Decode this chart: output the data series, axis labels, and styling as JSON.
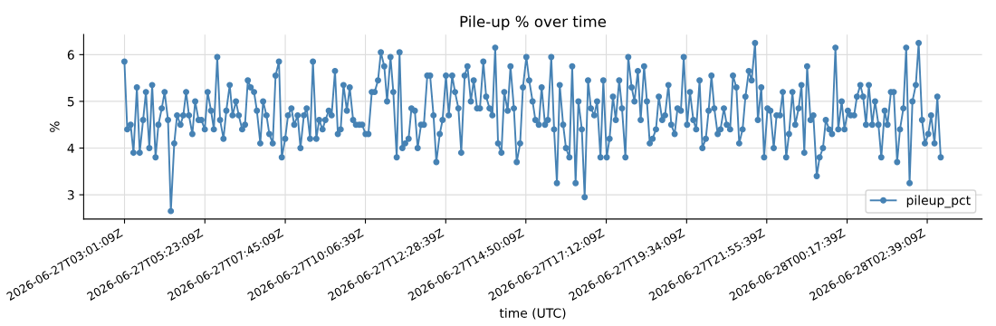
{
  "chart_data": {
    "type": "line",
    "title": "Pile-up % over time",
    "xlabel": "time (UTC)",
    "ylabel": "%",
    "x": [
      "2026-06-27T03:01",
      "2026-06-27T03:06",
      "2026-06-27T03:12",
      "2026-06-27T03:17",
      "2026-06-27T03:23",
      "2026-06-27T03:28",
      "2026-06-27T03:34",
      "2026-06-27T03:39",
      "2026-06-27T03:45",
      "2026-06-27T03:50",
      "2026-06-27T03:56",
      "2026-06-27T04:01",
      "2026-06-27T04:07",
      "2026-06-27T04:12",
      "2026-06-27T04:18",
      "2026-06-27T04:23",
      "2026-06-27T04:29",
      "2026-06-27T04:34",
      "2026-06-27T04:40",
      "2026-06-27T04:45",
      "2026-06-27T04:50",
      "2026-06-27T04:55",
      "2026-06-27T05:01",
      "2026-06-27T05:06",
      "2026-06-27T05:12",
      "2026-06-27T05:17",
      "2026-06-27T05:23",
      "2026-06-27T05:28",
      "2026-06-27T05:34",
      "2026-06-27T05:39",
      "2026-06-27T05:45",
      "2026-06-27T05:50",
      "2026-06-27T05:56",
      "2026-06-27T06:01",
      "2026-06-27T06:07",
      "2026-06-27T06:12",
      "2026-06-27T06:18",
      "2026-06-27T06:23",
      "2026-06-27T06:29",
      "2026-06-27T06:34",
      "2026-06-27T06:39",
      "2026-06-27T06:44",
      "2026-06-27T06:50",
      "2026-06-27T06:55",
      "2026-06-27T07:01",
      "2026-06-27T07:06",
      "2026-06-27T07:12",
      "2026-06-27T07:17",
      "2026-06-27T07:23",
      "2026-06-27T07:28",
      "2026-06-27T07:34",
      "2026-06-27T07:39",
      "2026-06-27T07:45",
      "2026-06-27T07:50",
      "2026-06-27T07:56",
      "2026-06-27T08:01",
      "2026-06-27T08:07",
      "2026-06-27T08:12",
      "2026-06-27T08:18",
      "2026-06-27T08:23",
      "2026-06-27T08:29",
      "2026-06-27T08:34",
      "2026-06-27T08:40",
      "2026-06-27T08:45",
      "2026-06-27T08:51",
      "2026-06-27T08:56",
      "2026-06-27T09:02",
      "2026-06-27T09:07",
      "2026-06-27T09:13",
      "2026-06-27T09:18",
      "2026-06-27T09:23",
      "2026-06-27T09:28",
      "2026-06-27T09:34",
      "2026-06-27T09:39",
      "2026-06-27T09:45",
      "2026-06-27T09:50",
      "2026-06-27T09:56",
      "2026-06-27T10:01",
      "2026-06-27T10:07",
      "2026-06-27T10:12",
      "2026-06-27T10:18",
      "2026-06-27T10:23",
      "2026-06-27T10:29",
      "2026-06-27T10:34",
      "2026-06-27T10:40",
      "2026-06-27T10:45",
      "2026-06-27T10:51",
      "2026-06-27T10:56",
      "2026-06-27T11:02",
      "2026-06-27T11:07",
      "2026-06-27T11:12",
      "2026-06-27T11:17",
      "2026-06-27T11:23",
      "2026-06-27T11:28",
      "2026-06-27T11:34",
      "2026-06-27T11:39",
      "2026-06-27T11:45",
      "2026-06-27T11:50",
      "2026-06-27T11:56",
      "2026-06-27T12:01",
      "2026-06-27T12:07",
      "2026-06-27T12:12",
      "2026-06-27T12:18",
      "2026-06-27T12:23",
      "2026-06-27T12:29",
      "2026-06-27T12:34",
      "2026-06-27T12:40",
      "2026-06-27T12:45",
      "2026-06-27T12:51",
      "2026-06-27T12:56",
      "2026-06-27T13:02",
      "2026-06-27T13:07",
      "2026-06-27T13:13",
      "2026-06-27T13:18",
      "2026-06-27T13:24",
      "2026-06-27T13:29",
      "2026-06-27T13:35",
      "2026-06-27T13:40",
      "2026-06-27T13:46",
      "2026-06-27T13:51",
      "2026-06-27T13:56",
      "2026-06-27T14:01",
      "2026-06-27T14:07",
      "2026-06-27T14:12",
      "2026-06-27T14:18",
      "2026-06-27T14:23",
      "2026-06-27T14:29",
      "2026-06-27T14:34",
      "2026-06-27T14:40",
      "2026-06-27T14:45",
      "2026-06-27T14:51",
      "2026-06-27T14:56",
      "2026-06-27T15:02",
      "2026-06-27T15:07",
      "2026-06-27T15:13",
      "2026-06-27T15:18",
      "2026-06-27T15:24",
      "2026-06-27T15:29",
      "2026-06-27T15:35",
      "2026-06-27T15:40",
      "2026-06-27T15:45",
      "2026-06-27T15:50",
      "2026-06-27T15:56",
      "2026-06-27T16:01",
      "2026-06-27T16:07",
      "2026-06-27T16:12",
      "2026-06-27T16:18",
      "2026-06-27T16:23",
      "2026-06-27T16:29",
      "2026-06-27T16:34",
      "2026-06-27T16:40",
      "2026-06-27T16:45",
      "2026-06-27T16:51",
      "2026-06-27T16:56",
      "2026-06-27T17:02",
      "2026-06-27T17:07",
      "2026-06-27T17:13",
      "2026-06-27T17:18",
      "2026-06-27T17:24",
      "2026-06-27T17:29",
      "2026-06-27T17:35",
      "2026-06-27T17:40",
      "2026-06-27T17:46",
      "2026-06-27T17:51",
      "2026-06-27T17:57",
      "2026-06-27T18:02",
      "2026-06-27T18:08",
      "2026-06-27T18:13",
      "2026-06-27T18:19",
      "2026-06-27T18:24",
      "2026-06-27T18:29",
      "2026-06-27T18:34",
      "2026-06-27T18:40",
      "2026-06-27T18:45",
      "2026-06-27T18:51",
      "2026-06-27T18:56",
      "2026-06-27T19:02",
      "2026-06-27T19:07",
      "2026-06-27T19:13",
      "2026-06-27T19:18",
      "2026-06-27T19:24",
      "2026-06-27T19:29",
      "2026-06-27T19:35",
      "2026-06-27T19:40",
      "2026-06-27T19:46",
      "2026-06-27T19:51",
      "2026-06-27T19:57",
      "2026-06-27T20:02",
      "2026-06-27T20:08",
      "2026-06-27T20:13",
      "2026-06-27T20:18",
      "2026-06-27T20:23",
      "2026-06-27T20:29",
      "2026-06-27T20:34",
      "2026-06-27T20:40",
      "2026-06-27T20:45",
      "2026-06-27T20:51",
      "2026-06-27T20:56",
      "2026-06-27T21:02",
      "2026-06-27T21:07",
      "2026-06-27T21:13",
      "2026-06-27T21:18",
      "2026-06-27T21:24",
      "2026-06-27T21:29",
      "2026-06-27T21:35",
      "2026-06-27T21:40",
      "2026-06-27T21:46",
      "2026-06-27T21:51",
      "2026-06-27T21:57",
      "2026-06-27T22:02",
      "2026-06-27T22:08",
      "2026-06-27T22:13",
      "2026-06-27T22:19",
      "2026-06-27T22:24",
      "2026-06-27T22:30",
      "2026-06-27T22:35",
      "2026-06-27T22:41",
      "2026-06-27T22:46",
      "2026-06-27T22:52",
      "2026-06-27T22:57",
      "2026-06-27T23:02",
      "2026-06-27T23:07",
      "2026-06-27T23:13",
      "2026-06-27T23:18",
      "2026-06-27T23:24",
      "2026-06-27T23:29",
      "2026-06-27T23:35",
      "2026-06-27T23:40",
      "2026-06-27T23:46",
      "2026-06-27T23:51",
      "2026-06-27T23:57",
      "2026-06-28T00:02",
      "2026-06-28T00:08",
      "2026-06-28T00:13",
      "2026-06-28T00:19",
      "2026-06-28T00:24",
      "2026-06-28T00:30",
      "2026-06-28T00:35",
      "2026-06-28T00:41",
      "2026-06-28T00:46",
      "2026-06-28T00:51",
      "2026-06-28T00:56",
      "2026-06-28T01:02",
      "2026-06-28T01:07",
      "2026-06-28T01:13",
      "2026-06-28T01:18",
      "2026-06-28T01:24",
      "2026-06-28T01:29",
      "2026-06-28T01:35",
      "2026-06-28T01:40",
      "2026-06-28T01:46",
      "2026-06-28T01:51",
      "2026-06-28T01:57",
      "2026-06-28T02:02",
      "2026-06-28T02:08",
      "2026-06-28T02:13",
      "2026-06-28T02:19",
      "2026-06-28T02:24",
      "2026-06-28T02:30",
      "2026-06-28T02:35",
      "2026-06-28T02:41",
      "2026-06-28T02:46",
      "2026-06-28T02:52",
      "2026-06-28T02:57",
      "2026-06-28T03:03"
    ],
    "series": [
      {
        "name": "pileup_pct",
        "color": "#4682b4",
        "values": [
          5.85,
          4.4,
          4.5,
          3.9,
          5.3,
          3.9,
          4.6,
          5.2,
          4.0,
          5.35,
          3.8,
          4.5,
          4.85,
          5.2,
          4.6,
          2.65,
          4.1,
          4.7,
          4.5,
          4.7,
          5.2,
          4.7,
          4.3,
          5.0,
          4.6,
          4.6,
          4.4,
          5.2,
          4.8,
          4.4,
          5.95,
          4.6,
          4.2,
          4.8,
          5.35,
          4.7,
          5.0,
          4.7,
          4.4,
          4.5,
          5.45,
          5.3,
          5.2,
          4.8,
          4.1,
          5.0,
          4.7,
          4.3,
          4.1,
          5.55,
          5.85,
          3.8,
          4.2,
          4.7,
          4.85,
          4.5,
          4.7,
          4.0,
          4.7,
          4.85,
          4.2,
          5.85,
          4.2,
          4.6,
          4.4,
          4.6,
          4.8,
          4.7,
          5.65,
          4.3,
          4.4,
          5.35,
          4.8,
          5.3,
          4.6,
          4.5,
          4.5,
          4.5,
          4.3,
          4.3,
          5.2,
          5.2,
          5.45,
          6.05,
          5.75,
          5.0,
          5.95,
          5.2,
          3.8,
          6.05,
          4.0,
          4.1,
          4.2,
          4.85,
          4.8,
          4.0,
          4.5,
          4.5,
          5.55,
          5.55,
          4.7,
          3.7,
          4.3,
          4.6,
          5.55,
          4.7,
          5.55,
          5.2,
          4.85,
          3.9,
          5.55,
          5.75,
          5.0,
          5.45,
          4.85,
          4.85,
          5.85,
          5.1,
          4.85,
          4.7,
          6.15,
          4.1,
          3.9,
          5.2,
          4.8,
          5.75,
          4.85,
          3.7,
          4.1,
          5.3,
          5.95,
          5.45,
          5.0,
          4.6,
          4.5,
          5.3,
          4.5,
          4.6,
          5.95,
          4.4,
          3.25,
          5.35,
          4.5,
          4.0,
          3.8,
          5.75,
          3.25,
          5.0,
          4.4,
          2.95,
          5.45,
          4.85,
          4.7,
          5.0,
          3.8,
          5.45,
          3.8,
          4.2,
          5.1,
          4.6,
          5.45,
          4.85,
          3.8,
          5.95,
          5.3,
          5.0,
          5.65,
          4.6,
          5.75,
          5.0,
          4.1,
          4.2,
          4.4,
          5.1,
          4.6,
          4.7,
          5.35,
          4.5,
          4.3,
          4.85,
          4.8,
          5.95,
          4.5,
          5.2,
          4.6,
          4.4,
          5.45,
          4.0,
          4.2,
          4.8,
          5.55,
          4.85,
          4.3,
          4.4,
          4.85,
          4.5,
          4.4,
          5.55,
          5.3,
          4.1,
          4.4,
          5.1,
          5.65,
          5.45,
          6.25,
          4.6,
          5.3,
          3.8,
          4.85,
          4.8,
          4.0,
          4.7,
          4.7,
          5.2,
          3.8,
          4.3,
          5.2,
          4.5,
          4.85,
          5.35,
          3.9,
          5.75,
          4.6,
          4.7,
          3.4,
          3.8,
          4.0,
          4.6,
          4.4,
          4.3,
          6.15,
          4.4,
          5.0,
          4.4,
          4.8,
          4.7,
          4.7,
          5.1,
          5.35,
          5.1,
          4.5,
          5.35,
          4.5,
          5.0,
          4.5,
          3.8,
          4.8,
          4.5,
          5.2,
          5.2,
          3.7,
          4.4,
          4.85,
          6.15,
          3.25,
          5.0,
          5.35,
          6.25,
          4.6,
          4.1,
          4.3,
          4.7,
          4.1,
          5.1,
          3.8
        ]
      }
    ],
    "xlim": [
      "2026-06-27T01:49",
      "2026-06-28T04:16"
    ],
    "xticks": [
      "2026-06-27T03:01:09Z",
      "2026-06-27T05:23:09Z",
      "2026-06-27T07:45:09Z",
      "2026-06-27T10:06:39Z",
      "2026-06-27T12:28:39Z",
      "2026-06-27T14:50:09Z",
      "2026-06-27T17:12:09Z",
      "2026-06-27T19:34:09Z",
      "2026-06-27T21:55:39Z",
      "2026-06-28T00:17:39Z",
      "2026-06-28T02:39:09Z"
    ],
    "ylim": [
      2.48,
      6.43
    ],
    "yticks": [
      3,
      4,
      5,
      6
    ],
    "grid": true,
    "legend": "bottom right",
    "marker": "circle",
    "line_style": "solid"
  }
}
